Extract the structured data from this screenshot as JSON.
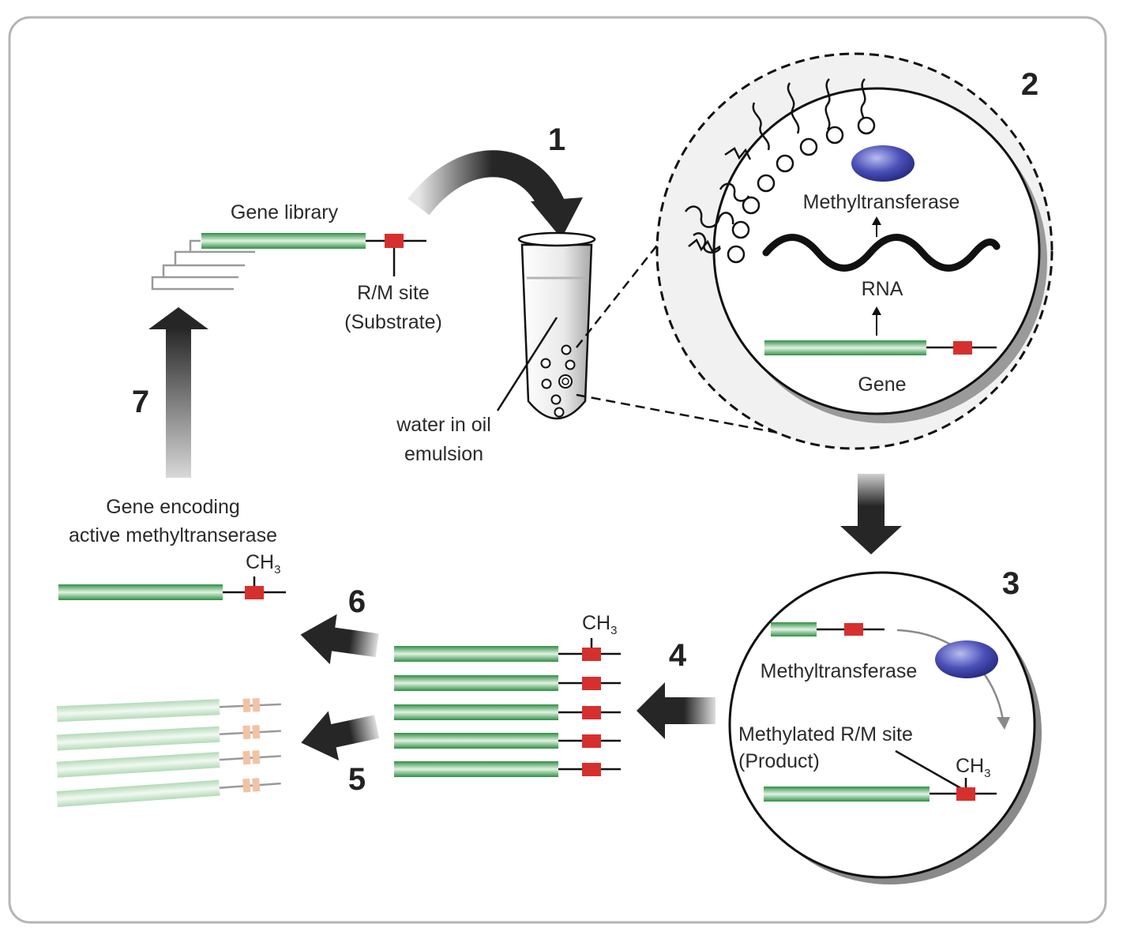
{
  "steps": {
    "s1": "1",
    "s2": "2",
    "s3": "3",
    "s4": "4",
    "s5": "5",
    "s6": "6",
    "s7": "7"
  },
  "library": {
    "title": "Gene library",
    "site_line1": "R/M site",
    "site_line2": "(Substrate)"
  },
  "tube": {
    "label_line1": "water in oil",
    "label_line2": "emulsion"
  },
  "droplet": {
    "enzyme": "Methyltransferase",
    "rna": "RNA",
    "gene": "Gene"
  },
  "reaction": {
    "enzyme": "Methyltransferase",
    "product_line1": "Methylated R/M site",
    "product_line2": "(Product)",
    "methyl_base": "CH",
    "methyl_sub": "3"
  },
  "sorted": {
    "methyl_base": "CH",
    "methyl_sub": "3"
  },
  "result": {
    "title_line1": "Gene encoding",
    "title_line2": "active methyltranserase",
    "methyl_base": "CH",
    "methyl_sub": "3"
  },
  "colors": {
    "gene_green": "#3e9e54",
    "site_red": "#d6302e",
    "enzyme_blue": "#3e43a8",
    "arrow_dark": "#262626"
  }
}
